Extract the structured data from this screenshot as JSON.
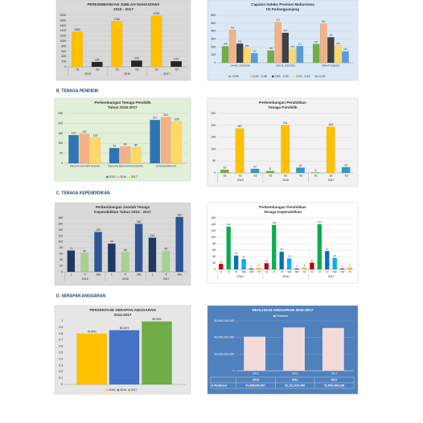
{
  "sections": [
    "B. TENAGA PENDIDIK",
    "C. TENAGA KEPENDIDIKAN",
    "D. SERAPAN ANGGARAN"
  ],
  "chart_data": [
    {
      "type": "bar",
      "title": "PERKEMBANGAN JUMLAH MAHASISWA",
      "subtitle": "2015 - 2017",
      "categories": [
        "S1",
        "S2",
        "S1",
        "S2",
        "S1",
        "S2"
      ],
      "groups": [
        "2015",
        "2016",
        "2017"
      ],
      "values": [
        1352,
        185,
        1766,
        239,
        1975,
        215
      ],
      "colors": [
        "#ffc000",
        "#262626"
      ],
      "ylim": [
        0,
        2000
      ],
      "yticks": [
        0,
        200,
        400,
        600,
        800,
        1000,
        1200,
        1400,
        1600,
        1800,
        2000
      ],
      "grid": true,
      "data_labels": true,
      "background": "#d9d9d9"
    },
    {
      "type": "bar",
      "title": "Capaian Indeks Prestasi Mahasiswa",
      "subtitle": "ISI Padangpanjang",
      "categories": [
        "GANJIL 2014/2015",
        "GANJIL 2015/2016",
        "GENAP 2016/2017"
      ],
      "series": [
        {
          "name": ">3,50",
          "color": "#70ad47",
          "values": [
            208,
            155,
            237
          ]
        },
        {
          "name": "3,00 - 3,49",
          "color": "#f4b183",
          "values": [
            415,
            513,
            493
          ]
        },
        {
          "name": "2,50 - 2,99",
          "color": "#404040",
          "values": [
            242,
            378,
            322
          ]
        },
        {
          "name": "2,01 - 2,49",
          "color": "#ffd966",
          "values": [
            186,
            176,
            216
          ]
        },
        {
          "name": "<2,00",
          "color": "#5b9bd5",
          "values": [
            120,
            211,
            143
          ]
        }
      ],
      "ylim": [
        0,
        600
      ],
      "yticks": [
        0,
        100,
        200,
        300,
        400,
        500,
        600
      ],
      "grid": true,
      "data_labels": true,
      "legend": "bottom",
      "background": "#dbe9f7"
    },
    {
      "type": "bar",
      "title": "Perkembangan Tenaga Pendidik",
      "subtitle": "Tahun 2015-2017",
      "categories": [
        "FAKULTAS SENI PERTUNJUKAN",
        "FAKULTAS SENI RUPA DAN DESAIN",
        "ISI PADANGPANJANG"
      ],
      "series": [
        {
          "name": "2015",
          "color": "#2e75b6",
          "values": [
            141,
            76,
            217
          ]
        },
        {
          "name": "2016",
          "color": "#f4b183",
          "values": [
            147,
            84,
            231
          ]
        },
        {
          "name": "2017",
          "color": "#ffd966",
          "values": [
            129,
            80,
            209
          ]
        }
      ],
      "ylim": [
        0,
        250
      ],
      "yticks": [
        0,
        50,
        100,
        150,
        200,
        250
      ],
      "grid": true,
      "data_labels": true,
      "legend": "bottom",
      "background": "#e2efd9"
    },
    {
      "type": "bar",
      "title": "Perkembangan Pendidikan",
      "subtitle": "Tenaga Pendidik",
      "categories": [
        "S1",
        "S2",
        "S3",
        "S1",
        "S2",
        "S3",
        "S1",
        "S2",
        "S3"
      ],
      "groups": [
        "2015",
        "2016",
        "2017"
      ],
      "values": [
        13,
        187,
        17,
        8,
        201,
        22,
        2,
        194,
        24
      ],
      "colors": [
        "#70ad47",
        "#ffc000",
        "#2e9bc6"
      ],
      "ylim": [
        0,
        250
      ],
      "yticks": [
        0,
        50,
        100,
        150,
        200,
        250
      ],
      "grid": true,
      "data_labels": true,
      "background": "#f2f2f2"
    },
    {
      "type": "bar",
      "title": "Perkembangan Jumlah Tenaga",
      "subtitle": "Kependidikan Tahun 2015 - 2017",
      "categories": [
        "L",
        "P",
        "JML",
        "L",
        "P",
        "JML",
        "L",
        "P",
        "JML"
      ],
      "groups": [
        "2015",
        "2016",
        "2017"
      ],
      "values": [
        71,
        62,
        133,
        94,
        66,
        160,
        114,
        69,
        183
      ],
      "colors": [
        "#1f3864",
        "#a9d18e",
        "#2e5597"
      ],
      "ylim": [
        0,
        180
      ],
      "yticks": [
        0,
        20,
        40,
        60,
        80,
        100,
        120,
        140,
        160,
        180
      ],
      "grid": true,
      "data_labels": true,
      "background": "#d9d9d9"
    },
    {
      "type": "bar",
      "title": "Perkembangan Pendidikan",
      "subtitle": "Tenaga Kependidikan",
      "categories": [
        "S2",
        "S1",
        "D3",
        "SMA",
        "SMP",
        "SD",
        "S2",
        "S1",
        "D3",
        "SMA",
        "SMP",
        "SD",
        "S2",
        "S1",
        "D3",
        "SMA",
        "SMP",
        "SD"
      ],
      "groups": [
        "2015",
        "2016",
        "2017"
      ],
      "values": [
        17,
        133,
        43,
        32,
        3,
        5,
        19,
        138,
        55,
        34,
        3,
        6,
        21,
        140,
        57,
        36,
        3,
        6
      ],
      "colors": [
        "#c00000",
        "#00b050",
        "#0070c0",
        "#00b0f0",
        "#7030a0",
        "#ffc000"
      ],
      "ylim": [
        0,
        160
      ],
      "yticks": [
        0,
        20,
        40,
        60,
        80,
        100,
        120,
        140,
        160
      ],
      "grid": true,
      "data_labels": true,
      "background": "#ffffff"
    },
    {
      "type": "bar",
      "title": "PERSENTASE SERAPAN ANGGARAN",
      "subtitle": "2014-2017",
      "series": [
        {
          "name": "2015",
          "color": "#ffc000",
          "values": [
            0.7984
          ],
          "value_labels": [
            "79.84%"
          ]
        },
        {
          "name": "2016",
          "color": "#4472c4",
          "values": [
            0.8526
          ],
          "value_labels": [
            "85.26%"
          ]
        },
        {
          "name": "2017",
          "color": "#70ad47",
          "values": [
            0.9896
          ],
          "value_labels": [
            "98.96%"
          ]
        }
      ],
      "ylim": [
        0,
        1
      ],
      "yticks": [
        0,
        0.1,
        0.2,
        0.3,
        0.4,
        0.5,
        0.6,
        0.7,
        0.8,
        0.9,
        1
      ],
      "grid": false,
      "data_labels": true,
      "legend": "bottom",
      "background": "#e7e6e6"
    },
    {
      "type": "bar",
      "title": "REALISASI ANGGARAN 2015-2017",
      "categories": [
        "2015",
        "2016",
        "2017"
      ],
      "series": [
        {
          "name": "Realisasi",
          "color": "#f2dcdb",
          "values": [
            41088649907,
            52181430448,
            51544498138
          ],
          "value_labels": [
            "41,088,649,907",
            "52,181,430,448",
            "51,544,498,138"
          ]
        }
      ],
      "ylim": [
        0,
        60000000000
      ],
      "yticks": [
        0,
        {
          "value": 20000000000,
          "label": "20,000,000,000"
        },
        {
          "value": 40000000000,
          "label": "40,000,000,000"
        },
        {
          "value": 60000000000,
          "label": "60,000,000,000"
        }
      ],
      "grid": true,
      "data_labels": false,
      "legend": "top",
      "table": true,
      "background": "#4f81bd"
    }
  ]
}
